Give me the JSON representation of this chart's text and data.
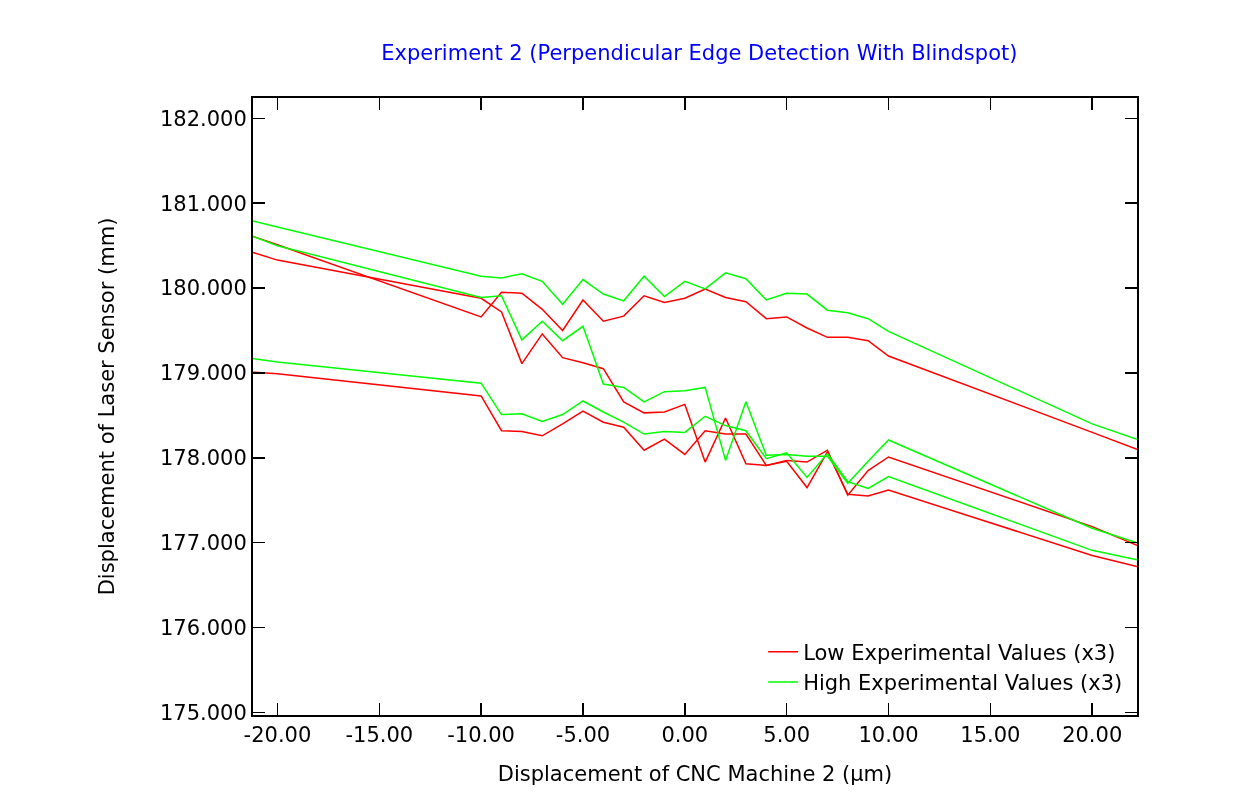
{
  "chart_data": {
    "type": "line",
    "title": "Experiment 2 (Perpendicular Edge Detection With Blindspot)",
    "xlabel": "Displacement of CNC Machine 2 (µm)",
    "ylabel": "Displacement of Laser Sensor (mm)",
    "x": [
      -21.2,
      -20,
      -10,
      -9,
      -8,
      -7,
      -6,
      -5,
      -4,
      -3,
      -2,
      -1,
      0,
      1,
      2,
      3,
      4,
      5,
      6,
      7,
      8,
      9,
      10,
      20,
      22.2
    ],
    "series": [
      {
        "name": "Low Experimental Values (x3)",
        "color": "#ff0000",
        "values": [
          180.61,
          180.51,
          179.66,
          179.95,
          179.94,
          179.75,
          179.5,
          179.86,
          179.61,
          179.67,
          179.91,
          179.83,
          179.88,
          179.99,
          179.89,
          179.84,
          179.64,
          179.66,
          179.53,
          179.42,
          179.42,
          179.38,
          179.2,
          178.3,
          178.1
        ]
      },
      {
        "name": "High Experimental Values (x3)",
        "color": "#00ff00",
        "values": [
          180.79,
          180.72,
          180.14,
          180.12,
          180.17,
          180.08,
          179.81,
          180.1,
          179.93,
          179.85,
          180.14,
          179.9,
          180.08,
          179.99,
          180.18,
          180.11,
          179.86,
          179.94,
          179.93,
          179.74,
          179.71,
          179.64,
          179.49,
          178.4,
          178.22
        ]
      },
      {
        "color": "#ff0000",
        "values": [
          180.42,
          180.33,
          179.88,
          179.72,
          179.11,
          179.46,
          179.18,
          179.12,
          179.05,
          178.66,
          178.53,
          178.54,
          178.63,
          177.95,
          178.47,
          177.93,
          177.91,
          177.97,
          177.95,
          178.09,
          177.56,
          177.85,
          178.01,
          177.19,
          176.97
        ]
      },
      {
        "color": "#ff0000",
        "values": [
          179.01,
          178.99,
          178.73,
          178.32,
          178.31,
          178.26,
          178.4,
          178.55,
          178.42,
          178.36,
          178.09,
          178.22,
          178.04,
          178.32,
          178.28,
          178.28,
          177.91,
          177.96,
          177.65,
          178.07,
          177.57,
          177.55,
          177.62,
          176.85,
          176.72
        ]
      },
      {
        "color": "#00ff00",
        "values": [
          180.61,
          180.5,
          179.89,
          179.91,
          179.39,
          179.61,
          179.38,
          179.55,
          178.87,
          178.83,
          178.66,
          178.78,
          178.79,
          178.83,
          177.97,
          178.66,
          178.03,
          178.04,
          178.02,
          178.02,
          177.7,
          177.96,
          178.21,
          177.17,
          177.0
        ]
      },
      {
        "color": "#00ff00",
        "values": [
          179.17,
          179.13,
          178.88,
          178.51,
          178.52,
          178.43,
          178.51,
          178.67,
          178.54,
          178.42,
          178.28,
          178.31,
          178.3,
          178.49,
          178.38,
          178.32,
          177.99,
          178.06,
          177.77,
          178.05,
          177.72,
          177.64,
          177.78,
          176.91,
          176.8
        ]
      }
    ],
    "xlim": [
      -21.2,
      22.2
    ],
    "xticks": [
      {
        "value": -20,
        "label": "-20.00"
      },
      {
        "value": -15,
        "label": "-15.00"
      },
      {
        "value": -10,
        "label": "-10.00"
      },
      {
        "value": -5,
        "label": "-5.00"
      },
      {
        "value": 0,
        "label": "0.00"
      },
      {
        "value": 5,
        "label": "5.00"
      },
      {
        "value": 10,
        "label": "10.00"
      },
      {
        "value": 15,
        "label": "15.00"
      },
      {
        "value": 20,
        "label": "20.00"
      }
    ],
    "ylim": [
      174.97,
      182.24
    ],
    "yticks": [
      {
        "value": 175,
        "label": "175.000"
      },
      {
        "value": 176,
        "label": "176.000"
      },
      {
        "value": 177,
        "label": "177.000"
      },
      {
        "value": 178,
        "label": "178.000"
      },
      {
        "value": 179,
        "label": "179.000"
      },
      {
        "value": 180,
        "label": "180.000"
      },
      {
        "value": 181,
        "label": "181.000"
      },
      {
        "value": 182,
        "label": "182.000"
      }
    ],
    "grid": false,
    "legend": "bottom right",
    "marker": "none",
    "line_style": "solid"
  }
}
